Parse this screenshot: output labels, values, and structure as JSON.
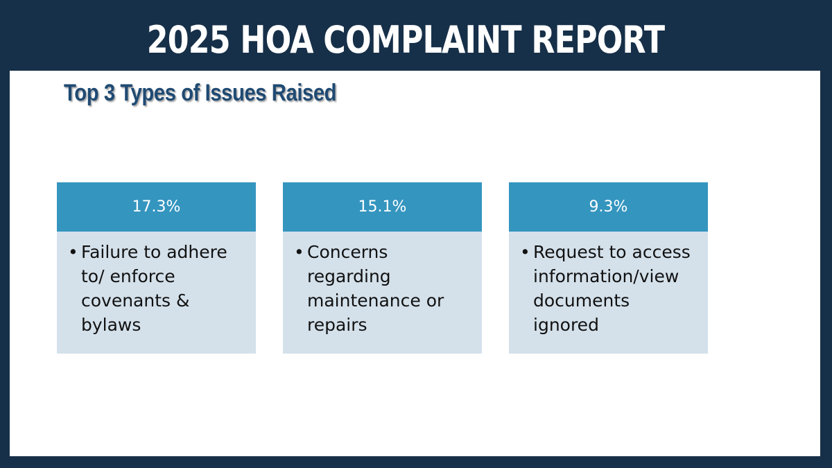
{
  "banner": {
    "title": "2025 HOA COMPLAINT REPORT"
  },
  "slide": {
    "heading": "Top 3 Types of Issues Raised",
    "cards": [
      {
        "percent": "17.3%",
        "text": "Failure to adhere to/ enforce covenants & bylaws"
      },
      {
        "percent": "15.1%",
        "text": "Concerns regarding maintenance or repairs"
      },
      {
        "percent": "9.3%",
        "text": "Request to access information/view documents ignored"
      }
    ]
  },
  "colors": {
    "frame": "#173049",
    "heading": "#1f4a73",
    "card_header": "#3495bf",
    "card_body": "#d4e1eb"
  }
}
